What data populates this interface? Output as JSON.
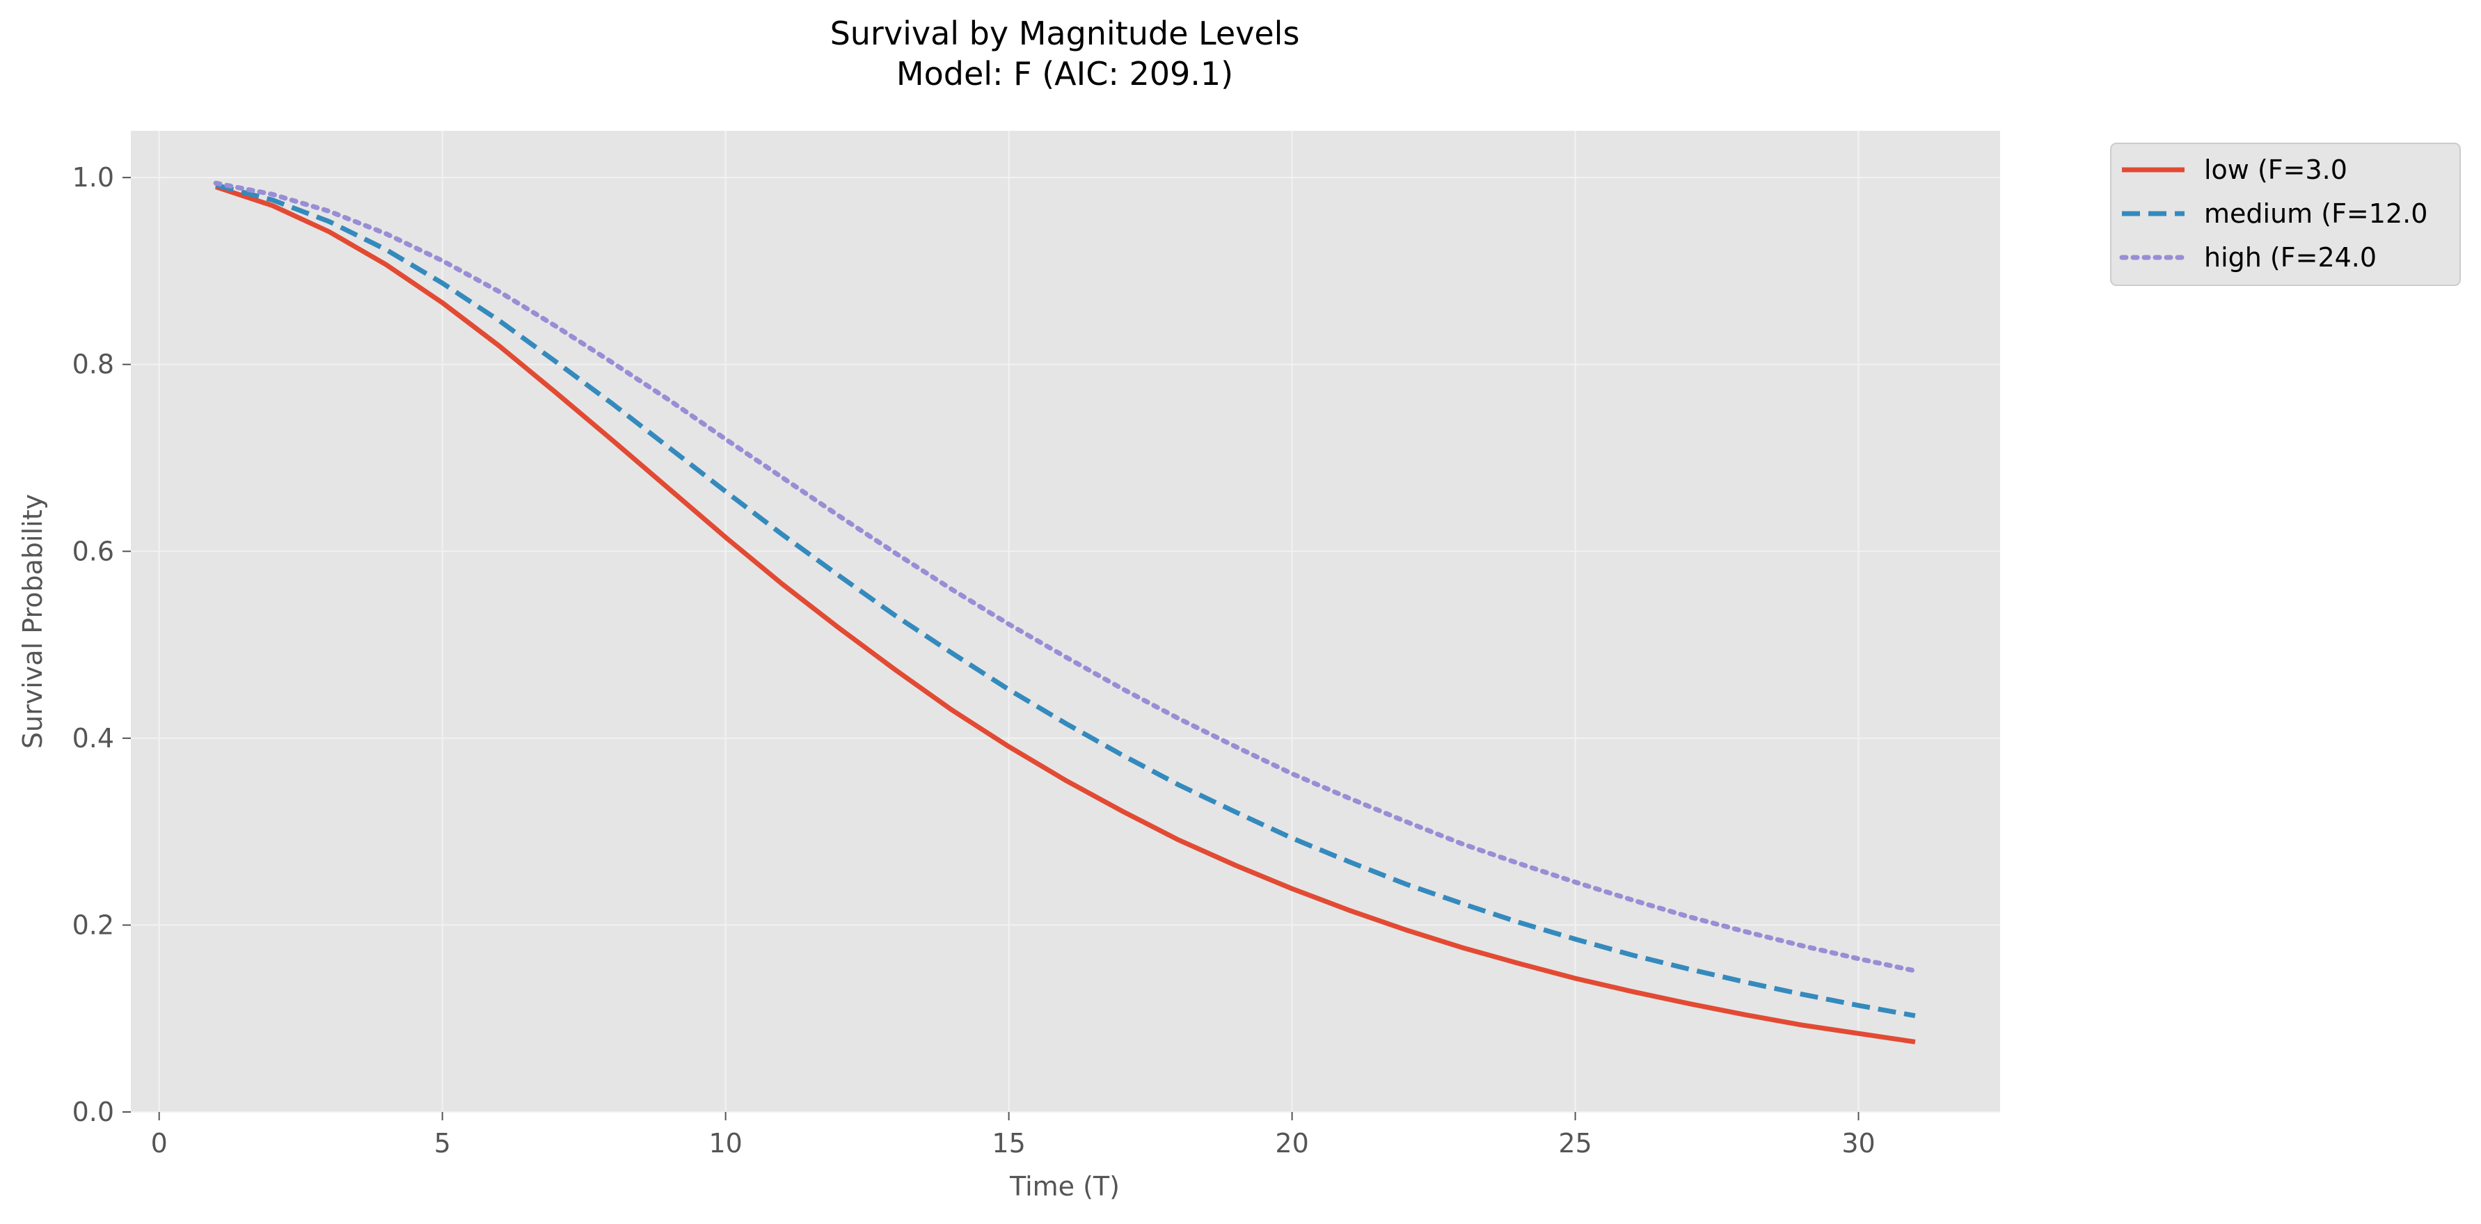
{
  "chart_data": {
    "type": "line",
    "title": "Survival by Magnitude Levels",
    "subtitle": "Model: F (AIC: 209.1)",
    "xlabel": "Time (T)",
    "ylabel": "Survival Probability",
    "xlim": [
      -0.5,
      32.5
    ],
    "ylim": [
      0,
      1.05
    ],
    "xticks": [
      0,
      5,
      10,
      15,
      20,
      25,
      30
    ],
    "yticks": [
      0.0,
      0.2,
      0.4,
      0.6,
      0.8,
      1.0
    ],
    "xtick_labels": [
      "0",
      "5",
      "10",
      "15",
      "20",
      "25",
      "30"
    ],
    "ytick_labels": [
      "0.0",
      "0.2",
      "0.4",
      "0.6",
      "0.8",
      "1.0"
    ],
    "grid": true,
    "legend_position": "outside-top-right",
    "background_color": "#E5E5E5",
    "grid_color": "#F2F2F2",
    "x": [
      1,
      2,
      3,
      4,
      5,
      6,
      7,
      8,
      9,
      10,
      11,
      12,
      13,
      14,
      15,
      16,
      17,
      18,
      19,
      20,
      21,
      22,
      23,
      24,
      25,
      26,
      27,
      28,
      29,
      30,
      31
    ],
    "series": [
      {
        "name": "low (F=3.0",
        "color": "#E24A33",
        "dash": "solid",
        "values": [
          0.99,
          0.97,
          0.942,
          0.907,
          0.866,
          0.82,
          0.77,
          0.719,
          0.667,
          0.615,
          0.565,
          0.518,
          0.473,
          0.43,
          0.391,
          0.355,
          0.322,
          0.291,
          0.264,
          0.239,
          0.216,
          0.195,
          0.176,
          0.159,
          0.143,
          0.129,
          0.116,
          0.104,
          0.093,
          0.084,
          0.075
        ]
      },
      {
        "name": "medium (F=12.0",
        "color": "#348ABD",
        "dash": "dashed",
        "values": [
          0.992,
          0.976,
          0.953,
          0.923,
          0.887,
          0.847,
          0.803,
          0.758,
          0.711,
          0.664,
          0.618,
          0.574,
          0.531,
          0.491,
          0.452,
          0.416,
          0.382,
          0.35,
          0.321,
          0.293,
          0.268,
          0.244,
          0.223,
          0.203,
          0.185,
          0.168,
          0.153,
          0.139,
          0.126,
          0.114,
          0.103
        ]
      },
      {
        "name": "high (F=24.0",
        "color": "#988ED5",
        "dash": "dotted",
        "values": [
          0.994,
          0.982,
          0.964,
          0.94,
          0.911,
          0.878,
          0.841,
          0.802,
          0.762,
          0.72,
          0.679,
          0.638,
          0.598,
          0.559,
          0.522,
          0.487,
          0.453,
          0.421,
          0.391,
          0.362,
          0.336,
          0.311,
          0.287,
          0.266,
          0.246,
          0.227,
          0.209,
          0.193,
          0.178,
          0.164,
          0.151
        ]
      }
    ]
  }
}
